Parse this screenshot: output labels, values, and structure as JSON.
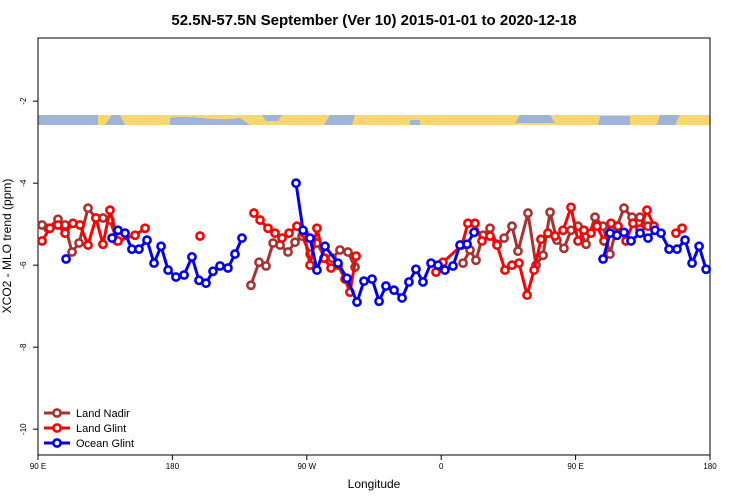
{
  "chart_data": {
    "type": "line",
    "title": "52.5N-57.5N September (Ver 10)   2015-01-01 to 2020-12-18",
    "x_label": "Longitude",
    "y_label": "XCO2 - MLO trend (ppm)",
    "xlim": [
      90,
      540
    ],
    "ylim": [
      -10.63,
      -0.46
    ],
    "xticks": [
      {
        "value": 90,
        "label": "90 E"
      },
      180,
      {
        "value": 270,
        "label": "90 W"
      },
      {
        "value": 360,
        "label": "0"
      },
      {
        "value": 450,
        "label": "90 E"
      },
      {
        "value": 540,
        "label": "180"
      }
    ],
    "yticks": [
      -2,
      -4,
      -6,
      -8,
      -10
    ],
    "legend": "bottom-left",
    "series": [
      {
        "name": "Land Nadir",
        "color": "#a83232",
        "x": [
          92.7,
          96.7,
          103.4,
          108.1,
          112.8,
          117.5,
          123.5,
          128.8,
          133.5,
          138.2,
          142.9,
          null,
          232.6,
          238,
          242.7,
          247.4,
          252.1,
          257.4,
          262.1,
          266.8,
          272.2,
          276.8,
          282.2,
          286.9,
          292.2,
          297.6,
          302.3,
          null,
          374.6,
          379.3,
          383.3,
          388,
          392.7,
          397.4,
          402.1,
          407.4,
          411.4,
          418.1,
          423.5,
          428.2,
          432.9,
          437.5,
          442.2,
          446.9,
          451.6,
          457,
          463,
          468.4,
          473,
          477.7,
          482.4,
          487.8,
          493.1,
          498.5
        ],
        "values": [
          -5.02,
          -5.1,
          -4.88,
          -5.02,
          -5.68,
          -5.46,
          -4.61,
          -4.85,
          -4.85,
          -4.9,
          -5.41,
          null,
          -6.49,
          -5.93,
          -6.02,
          -5.46,
          -5.51,
          -5.68,
          -5.44,
          -5.29,
          -5.73,
          -5.46,
          -5.83,
          -5.83,
          -5.63,
          -5.68,
          -6.05,
          null,
          -5.95,
          -5.63,
          -5.88,
          -5.27,
          -5.1,
          -5.49,
          -5.34,
          -5.05,
          -5.66,
          -4.73,
          -6.0,
          -5.76,
          -4.71,
          -5.39,
          -5.59,
          -5.15,
          -5.05,
          -5.49,
          -4.83,
          -5.05,
          -5.73,
          -5.05,
          -4.61,
          -4.83,
          -4.83,
          -5.05
        ]
      },
      {
        "name": "Land Glint",
        "color": "#ff0000",
        "x": [
          92.7,
          98,
          103.4,
          108.1,
          113.4,
          118.1,
          123.5,
          128.8,
          133.5,
          138.2,
          143.6,
          155,
          161.7,
          null,
          198.5,
          null,
          234.6,
          238.7,
          244,
          248.7,
          253.4,
          258.1,
          263.4,
          268.1,
          272.2,
          276.8,
          281.5,
          286.2,
          290.9,
          295.6,
          298.9,
          303,
          null,
          356.5,
          361.2,
          373.9,
          377.9,
          382.6,
          387.3,
          392.7,
          397.4,
          402.7,
          407.4,
          412.1,
          417.5,
          422.2,
          426.8,
          431.5,
          436.2,
          441.6,
          446.9,
          451.6,
          455.6,
          460.3,
          464.3,
          469,
          473.7,
          478.4,
          483.8,
          488.4,
          493.1,
          497.8,
          502.5,
          null,
          517.2,
          521.3
        ],
        "values": [
          -5.41,
          -5.1,
          -5.02,
          -5.22,
          -4.98,
          -5.02,
          -5.51,
          -4.85,
          -5.49,
          -4.66,
          -5.41,
          -5.27,
          -5.1,
          null,
          -5.29,
          null,
          -4.73,
          -4.9,
          -5.1,
          -5.22,
          -5.34,
          -5.22,
          -5.05,
          -5.22,
          -6.0,
          -5.1,
          -5.83,
          -6.07,
          -6.0,
          -6.34,
          -6.66,
          -5.78,
          null,
          -6.17,
          -5.93,
          -5.51,
          -4.98,
          -4.98,
          -5.41,
          -5.29,
          -5.51,
          -6.12,
          -6.0,
          -5.95,
          -6.73,
          -6.12,
          -5.37,
          -5.22,
          -5.29,
          -5.15,
          -4.59,
          -5.41,
          -5.15,
          -5.22,
          -5.05,
          -5.41,
          -4.98,
          -5.05,
          -5.41,
          -4.98,
          -5.12,
          -4.66,
          -5.05,
          null,
          -5.22,
          -5.1
        ]
      },
      {
        "name": "Ocean Glint",
        "color": "#0000ee",
        "x": [
          108.8,
          null,
          139.6,
          143.6,
          148.3,
          152.9,
          157.6,
          163,
          167.7,
          172.4,
          177.1,
          182.4,
          187.8,
          193.1,
          197.8,
          202.5,
          207.2,
          211.9,
          217.2,
          221.9,
          226.6,
          null,
          262.8,
          267.5,
          272.2,
          276.8,
          282.2,
          290.9,
          296.9,
          303.6,
          308.3,
          313.7,
          318.4,
          323,
          328.4,
          333.8,
          338.4,
          343.1,
          347.8,
          353.2,
          357.9,
          362.5,
          367.9,
          372.6,
          377.3,
          382,
          null,
          468.4,
          473.1,
          477.7,
          482.4,
          487.1,
          493.2,
          498.5,
          503.2,
          507.2,
          512.6,
          517.9,
          523.3,
          528,
          532.7,
          537.4
        ],
        "values": [
          -5.85,
          null,
          -5.34,
          -5.15,
          -5.22,
          -5.61,
          -5.61,
          -5.39,
          -5.95,
          -5.54,
          -6.12,
          -6.29,
          -6.24,
          -5.8,
          -6.37,
          -6.44,
          -6.15,
          -6.02,
          -6.07,
          -5.73,
          -5.34,
          null,
          -4.0,
          -5.15,
          -5.34,
          -6.12,
          -5.54,
          -5.95,
          -6.32,
          -6.9,
          -6.39,
          -6.34,
          -6.88,
          -6.51,
          -6.61,
          -6.8,
          -6.41,
          -6.1,
          -6.41,
          -5.95,
          -6.0,
          -6.12,
          -6.02,
          -5.51,
          -5.49,
          -5.2,
          null,
          -5.85,
          -5.22,
          -5.27,
          -5.2,
          -5.41,
          -5.22,
          -5.34,
          -5.15,
          -5.22,
          -5.61,
          -5.61,
          -5.39,
          -5.95,
          -5.54,
          -6.1
        ]
      }
    ]
  }
}
